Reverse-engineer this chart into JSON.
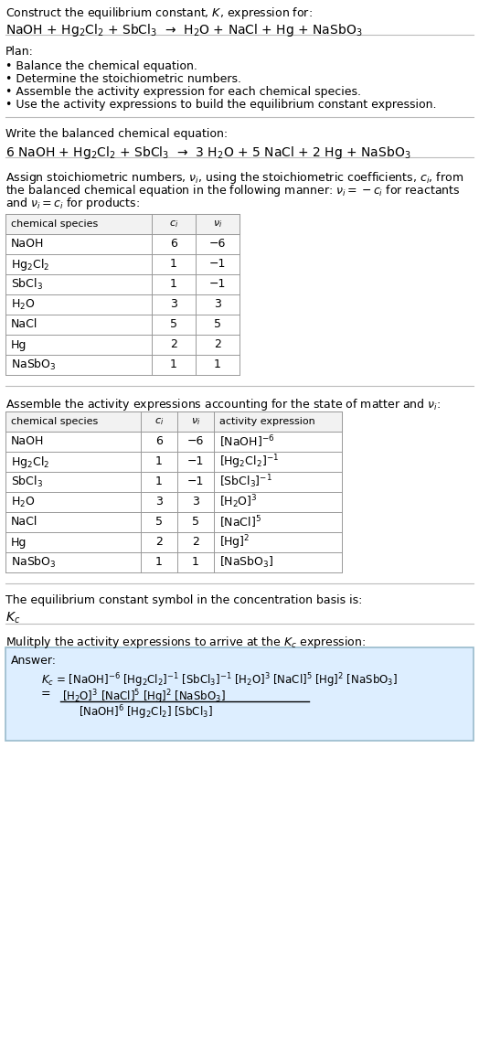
{
  "bg_color": "#ffffff",
  "text_color": "#000000",
  "fs": 9.0,
  "fs_small": 8.0,
  "fs_large": 10.0,
  "title_line1": "Construct the equilibrium constant, $K$, expression for:",
  "title_line2": "NaOH + Hg$_2$Cl$_2$ + SbCl$_3$  →  H$_2$O + NaCl + Hg + NaSbO$_3$",
  "plan_header": "Plan:",
  "plan_bullets": [
    "• Balance the chemical equation.",
    "• Determine the stoichiometric numbers.",
    "• Assemble the activity expression for each chemical species.",
    "• Use the activity expressions to build the equilibrium constant expression."
  ],
  "balanced_header": "Write the balanced chemical equation:",
  "balanced_eq": "6 NaOH + Hg$_2$Cl$_2$ + SbCl$_3$  →  3 H$_2$O + 5 NaCl + 2 Hg + NaSbO$_3$",
  "stoich_lines": [
    "Assign stoichiometric numbers, $\\nu_i$, using the stoichiometric coefficients, $c_i$, from",
    "the balanced chemical equation in the following manner: $\\nu_i = -c_i$ for reactants",
    "and $\\nu_i = c_i$ for products:"
  ],
  "table1_headers": [
    "chemical species",
    "$c_i$",
    "$\\nu_i$"
  ],
  "table1_data": [
    [
      "NaOH",
      "6",
      "−6"
    ],
    [
      "Hg$_2$Cl$_2$",
      "1",
      "−1"
    ],
    [
      "SbCl$_3$",
      "1",
      "−1"
    ],
    [
      "H$_2$O",
      "3",
      "3"
    ],
    [
      "NaCl",
      "5",
      "5"
    ],
    [
      "Hg",
      "2",
      "2"
    ],
    [
      "NaSbO$_3$",
      "1",
      "1"
    ]
  ],
  "activity_header": "Assemble the activity expressions accounting for the state of matter and $\\nu_i$:",
  "table2_headers": [
    "chemical species",
    "$c_i$",
    "$\\nu_i$",
    "activity expression"
  ],
  "table2_data": [
    [
      "NaOH",
      "6",
      "−6",
      "[NaOH]$^{-6}$"
    ],
    [
      "Hg$_2$Cl$_2$",
      "1",
      "−1",
      "[Hg$_2$Cl$_2$]$^{-1}$"
    ],
    [
      "SbCl$_3$",
      "1",
      "−1",
      "[SbCl$_3$]$^{-1}$"
    ],
    [
      "H$_2$O",
      "3",
      "3",
      "[H$_2$O]$^3$"
    ],
    [
      "NaCl",
      "5",
      "5",
      "[NaCl]$^5$"
    ],
    [
      "Hg",
      "2",
      "2",
      "[Hg]$^2$"
    ],
    [
      "NaSbO$_3$",
      "1",
      "1",
      "[NaSbO$_3$]"
    ]
  ],
  "kc_header": "The equilibrium constant symbol in the concentration basis is:",
  "kc_symbol": "$K_c$",
  "multiply_header": "Mulitply the activity expressions to arrive at the $K_c$ expression:",
  "answer_label": "Answer:",
  "answer_line1": "$K_c$ = [NaOH]$^{-6}$ [Hg$_2$Cl$_2$]$^{-1}$ [SbCl$_3$]$^{-1}$ [H$_2$O]$^3$ [NaCl]$^5$ [Hg]$^2$ [NaSbO$_3$]",
  "answer_line2_num": "[H$_2$O]$^3$ [NaCl]$^5$ [Hg]$^2$ [NaSbO$_3$]",
  "answer_line2_den": "[NaOH]$^6$ [Hg$_2$Cl$_2$] [SbCl$_3$]",
  "table_header_bg": "#f2f2f2",
  "answer_box_bg": "#ddeeff",
  "answer_box_edge": "#99bbcc",
  "line_color": "#bbbbbb"
}
